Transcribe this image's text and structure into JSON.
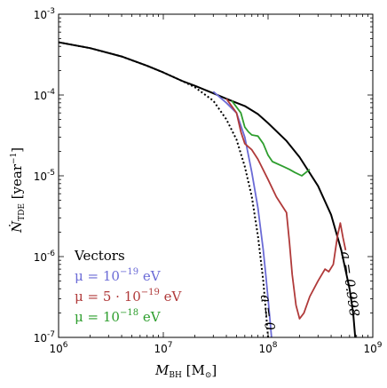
{
  "chart_data": {
    "type": "line",
    "xlabel": "M_BH [M_⊙]",
    "ylabel": "Ṅ_TDE [year⁻¹]",
    "x_scale": "log",
    "y_scale": "log",
    "xlim": [
      1000000,
      1000000000
    ],
    "ylim": [
      1e-07,
      0.001
    ],
    "x_ticks": [
      {
        "value": 1000000,
        "base": "10",
        "exp": "6"
      },
      {
        "value": 10000000,
        "base": "10",
        "exp": "7"
      },
      {
        "value": 100000000,
        "base": "10",
        "exp": "8"
      },
      {
        "value": 1000000000,
        "base": "10",
        "exp": "9"
      }
    ],
    "y_ticks": [
      {
        "value": 1e-07,
        "base": "10",
        "exp": "-7"
      },
      {
        "value": 1e-06,
        "base": "10",
        "exp": "-6"
      },
      {
        "value": 1e-05,
        "base": "10",
        "exp": "-5"
      },
      {
        "value": 0.0001,
        "base": "10",
        "exp": "-4"
      },
      {
        "value": 0.001,
        "base": "10",
        "exp": "-3"
      }
    ],
    "legend": {
      "title": "Vectors",
      "placement": "bottom-left",
      "entries": [
        {
          "prefix": "μ = 10",
          "exp": "−19",
          "suffix": " eV",
          "color": "#6b6bd6"
        },
        {
          "prefix": "μ = 5 · 10",
          "exp": "−19",
          "suffix": " eV",
          "color": "#b03a3a"
        },
        {
          "prefix": "μ = 10",
          "exp": "−18",
          "suffix": " eV",
          "color": "#2e9e2e"
        }
      ]
    },
    "annotations": [
      {
        "text": "a = 0",
        "x": 90000000,
        "y": 2e-07,
        "rotation": 82
      },
      {
        "text": "a = 0.998",
        "x": 550000000,
        "y": 4.5e-07,
        "rotation": 82
      }
    ],
    "series": [
      {
        "key": "spin_0",
        "color": "#000000",
        "dash": true,
        "points": [
          [
            1000000,
            0.00045
          ],
          [
            2000000,
            0.00038
          ],
          [
            4000000,
            0.0003
          ],
          [
            7000000,
            0.00023
          ],
          [
            10000000,
            0.00019
          ],
          [
            15000000,
            0.00015
          ],
          [
            20000000,
            0.000125
          ],
          [
            30000000,
            8.5e-05
          ],
          [
            40000000,
            5e-05
          ],
          [
            50000000,
            2.8e-05
          ],
          [
            60000000,
            1.3e-05
          ],
          [
            70000000,
            5.5e-06
          ],
          [
            80000000,
            1.8e-06
          ],
          [
            90000000,
            5e-07
          ],
          [
            95000000,
            2.2e-07
          ],
          [
            100000000,
            1e-07
          ]
        ]
      },
      {
        "key": "spin_0998",
        "color": "#000000",
        "dash": false,
        "points": [
          [
            1000000,
            0.00045
          ],
          [
            2000000,
            0.00038
          ],
          [
            4000000,
            0.0003
          ],
          [
            7000000,
            0.00023
          ],
          [
            10000000,
            0.00019
          ],
          [
            15000000,
            0.00015
          ],
          [
            20000000,
            0.00013
          ],
          [
            30000000,
            0.000105
          ],
          [
            40000000,
            9e-05
          ],
          [
            50000000,
            8e-05
          ],
          [
            60000000,
            7.3e-05
          ],
          [
            80000000,
            5.8e-05
          ],
          [
            100000000,
            4.5e-05
          ],
          [
            150000000,
            2.7e-05
          ],
          [
            200000000,
            1.7e-05
          ],
          [
            300000000,
            7.5e-06
          ],
          [
            400000000,
            3.3e-06
          ],
          [
            500000000,
            1.2e-06
          ],
          [
            600000000,
            4e-07
          ],
          [
            650000000,
            2e-07
          ],
          [
            680000000,
            1e-07
          ]
        ]
      },
      {
        "key": "mu_1e-19",
        "color": "#6b6bd6",
        "dash": false,
        "points": [
          [
            30000000,
            0.00011
          ],
          [
            40000000,
            8e-05
          ],
          [
            50000000,
            6e-05
          ],
          [
            60000000,
            3e-05
          ],
          [
            70000000,
            1.1e-05
          ],
          [
            80000000,
            4e-06
          ],
          [
            90000000,
            1.2e-06
          ],
          [
            95000000,
            6e-07
          ],
          [
            100000000,
            3e-07
          ],
          [
            105000000,
            1.5e-07
          ],
          [
            108000000,
            1e-07
          ]
        ]
      },
      {
        "key": "mu_5e-19",
        "color": "#b03a3a",
        "dash": false,
        "points": [
          [
            40000000,
            9e-05
          ],
          [
            50000000,
            6e-05
          ],
          [
            55000000,
            3.5e-05
          ],
          [
            60000000,
            2.5e-05
          ],
          [
            70000000,
            2.1e-05
          ],
          [
            80000000,
            1.6e-05
          ],
          [
            100000000,
            9e-06
          ],
          [
            120000000,
            5.5e-06
          ],
          [
            150000000,
            3.5e-06
          ],
          [
            160000000,
            1.5e-06
          ],
          [
            170000000,
            6e-07
          ],
          [
            185000000,
            2.5e-07
          ],
          [
            200000000,
            1.7e-07
          ],
          [
            220000000,
            2e-07
          ],
          [
            250000000,
            3.2e-07
          ],
          [
            300000000,
            5e-07
          ],
          [
            350000000,
            7e-07
          ],
          [
            380000000,
            6.5e-07
          ],
          [
            420000000,
            8e-07
          ],
          [
            460000000,
            1.8e-06
          ],
          [
            490000000,
            2.6e-06
          ],
          [
            520000000,
            1.7e-06
          ],
          [
            550000000,
            1.2e-06
          ]
        ]
      },
      {
        "key": "mu_1e-18",
        "color": "#2e9e2e",
        "dash": false,
        "points": [
          [
            45000000,
            8.5e-05
          ],
          [
            55000000,
            6e-05
          ],
          [
            60000000,
            4e-05
          ],
          [
            65000000,
            3.5e-05
          ],
          [
            70000000,
            3.2e-05
          ],
          [
            80000000,
            3.1e-05
          ],
          [
            90000000,
            2.5e-05
          ],
          [
            100000000,
            1.8e-05
          ],
          [
            110000000,
            1.5e-05
          ],
          [
            140000000,
            1.3e-05
          ],
          [
            160000000,
            1.2e-05
          ],
          [
            180000000,
            1.1e-05
          ],
          [
            210000000,
            1e-05
          ],
          [
            230000000,
            1.1e-05
          ],
          [
            250000000,
            1.2e-05
          ]
        ]
      }
    ]
  }
}
